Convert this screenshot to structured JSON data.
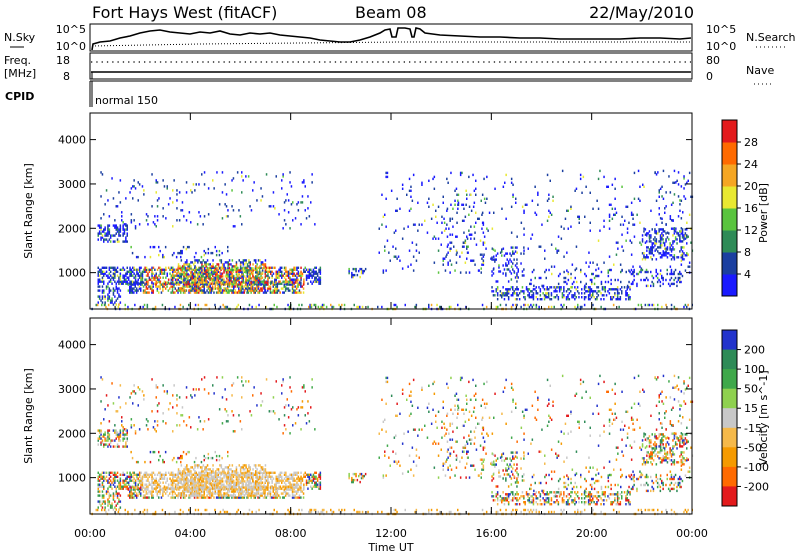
{
  "header": {
    "radar": "Fort Hays West (fitACF)",
    "beam": "Beam 08",
    "date": "22/May/2010"
  },
  "noise_panel": {
    "left_label": "N.Sky",
    "right_label": "N.Search",
    "tick_top": "10^5",
    "tick_bottom": "10^0"
  },
  "freq_panel": {
    "left_label_1": "Freq.",
    "left_label_2": "[MHz]",
    "right_label": "Nave",
    "left_ticks": [
      "18",
      "8"
    ],
    "right_ticks": [
      "80",
      "0"
    ]
  },
  "cpid_panel": {
    "label": "CPID",
    "mode": "normal 150"
  },
  "chart_data": [
    {
      "type": "heatmap",
      "name": "power",
      "ylabel": "Slant Range [km]",
      "xlabel": "",
      "ylim": [
        180,
        4600
      ],
      "yticks": [
        "1000",
        "2000",
        "3000",
        "4000"
      ],
      "xlim": [
        0,
        24
      ],
      "xticks": [
        "00:00",
        "04:00",
        "08:00",
        "12:00",
        "16:00",
        "20:00",
        "00:00"
      ],
      "colorbar": {
        "label": "Power [dB]",
        "ticks": [
          "4",
          "8",
          "12",
          "16",
          "20",
          "24",
          "28"
        ],
        "colors": [
          "#1a1aff",
          "#1b3fa0",
          "#2e8b57",
          "#59c43e",
          "#e8e831",
          "#f5a623",
          "#ff6a00",
          "#e31a1c"
        ]
      }
    },
    {
      "type": "heatmap",
      "name": "velocity",
      "ylabel": "Slant Range [km]",
      "xlabel": "Time UT",
      "ylim": [
        180,
        4600
      ],
      "yticks": [
        "1000",
        "2000",
        "3000",
        "4000"
      ],
      "xlim": [
        0,
        24
      ],
      "xticks": [
        "00:00",
        "04:00",
        "08:00",
        "12:00",
        "16:00",
        "20:00",
        "00:00"
      ],
      "colorbar": {
        "label": "Velocity [m s^-1]",
        "ticks": [
          "200",
          "100",
          "50",
          "15",
          "-15",
          "-50",
          "-100",
          "-200"
        ],
        "colors": [
          "#2233cc",
          "#2e8b57",
          "#3fa84a",
          "#8fd14f",
          "#c8c8c8",
          "#f5b94a",
          "#f59a00",
          "#ff6a00",
          "#e31a1c"
        ]
      }
    }
  ]
}
